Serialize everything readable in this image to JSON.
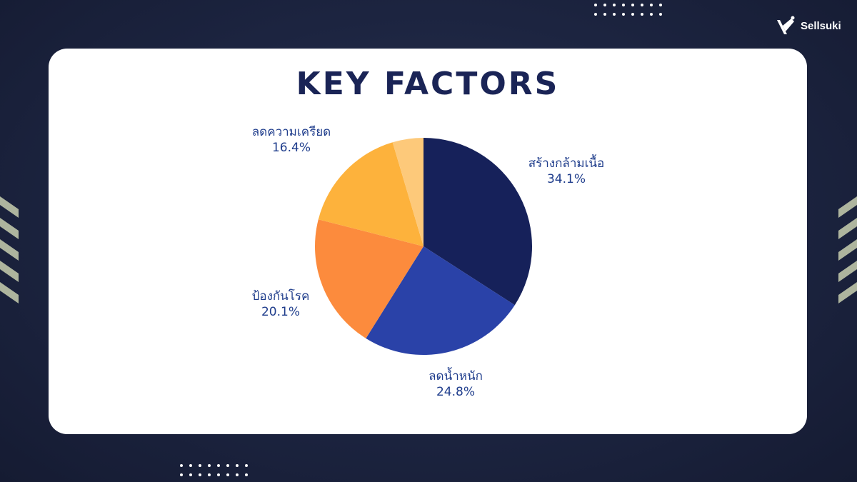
{
  "brand": {
    "name": "Sellsuki"
  },
  "theme": {
    "background": "#1c2440",
    "card": "#ffffff",
    "title_color": "#1a2456",
    "label_color": "#1f3d8c"
  },
  "chart_data": {
    "type": "pie",
    "title": "KEY FACTORS",
    "start_angle_deg": 0,
    "direction": "clockwise",
    "slices": [
      {
        "label": "สร้างกล้ามเนื้อ",
        "value": 34.1,
        "value_label": "34.1%",
        "color": "#16215a"
      },
      {
        "label": "ลดน้ำหนัก",
        "value": 24.8,
        "value_label": "24.8%",
        "color": "#2a42a8"
      },
      {
        "label": "ป้องกันโรค",
        "value": 20.1,
        "value_label": "20.1%",
        "color": "#fc8b3d"
      },
      {
        "label": "ลดความเครียด",
        "value": 16.4,
        "value_label": "16.4%",
        "color": "#fdb23c"
      },
      {
        "label": "",
        "value": 4.6,
        "value_label": "",
        "color": "#fdc97a"
      }
    ]
  }
}
